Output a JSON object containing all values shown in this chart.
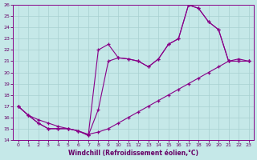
{
  "xlabel": "Windchill (Refroidissement éolien,°C)",
  "background_color": "#c5e8e8",
  "grid_color": "#a8d0d0",
  "line_color": "#880088",
  "xlim": [
    -0.5,
    23.5
  ],
  "ylim": [
    14,
    26
  ],
  "xticks": [
    0,
    1,
    2,
    3,
    4,
    5,
    6,
    7,
    8,
    9,
    10,
    11,
    12,
    13,
    14,
    15,
    16,
    17,
    18,
    19,
    20,
    21,
    22,
    23
  ],
  "yticks": [
    14,
    15,
    16,
    17,
    18,
    19,
    20,
    21,
    22,
    23,
    24,
    25,
    26
  ],
  "line1_x": [
    0,
    1,
    2,
    3,
    4,
    5,
    6,
    7,
    8,
    9,
    10,
    11,
    12,
    13,
    14,
    15,
    16,
    17,
    18,
    19,
    20,
    21,
    22,
    23
  ],
  "line1_y": [
    17.0,
    16.2,
    15.8,
    15.5,
    15.2,
    15.0,
    14.8,
    14.5,
    14.7,
    15.0,
    15.5,
    16.0,
    16.5,
    17.0,
    17.5,
    18.0,
    18.5,
    19.0,
    19.5,
    20.0,
    20.5,
    21.0,
    21.2,
    21.0
  ],
  "line2_x": [
    0,
    1,
    2,
    3,
    4,
    5,
    6,
    7,
    8,
    9,
    10,
    11,
    12,
    13,
    14,
    15,
    16,
    17,
    18,
    19,
    20,
    21,
    22,
    23
  ],
  "line2_y": [
    17.0,
    16.2,
    15.5,
    15.0,
    15.0,
    15.0,
    14.8,
    14.4,
    16.7,
    21.0,
    21.3,
    21.2,
    21.0,
    20.5,
    21.2,
    22.5,
    23.0,
    26.0,
    25.7,
    24.5,
    23.8,
    21.0,
    21.0,
    21.0
  ],
  "line3_x": [
    0,
    1,
    2,
    3,
    4,
    5,
    6,
    7,
    8,
    9,
    10,
    11,
    12,
    13,
    14,
    15,
    16,
    17,
    18,
    19,
    20,
    21,
    22,
    23
  ],
  "line3_y": [
    17.0,
    16.2,
    15.5,
    15.0,
    15.0,
    15.0,
    14.8,
    14.4,
    22.0,
    22.5,
    21.3,
    21.2,
    21.0,
    20.5,
    21.2,
    22.5,
    23.0,
    26.0,
    25.7,
    24.5,
    23.8,
    21.0,
    21.0,
    21.0
  ]
}
